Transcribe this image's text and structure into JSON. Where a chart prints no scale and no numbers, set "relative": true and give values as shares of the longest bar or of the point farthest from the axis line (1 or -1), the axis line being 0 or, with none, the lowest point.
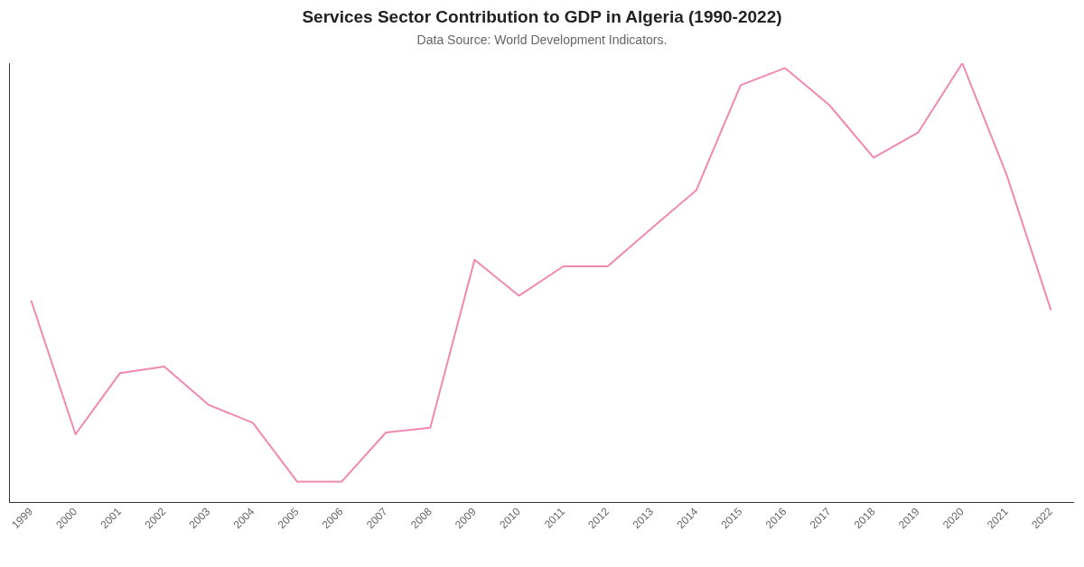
{
  "chart_data": {
    "type": "line",
    "title": "Services Sector Contribution to GDP in Algeria (1990-2022)",
    "subtitle": "Data Source: World Development Indicators.",
    "categories": [
      "1999",
      "2000",
      "2001",
      "2002",
      "2003",
      "2004",
      "2005",
      "2006",
      "2007",
      "2008",
      "2009",
      "2010",
      "2011",
      "2012",
      "2013",
      "2014",
      "2015",
      "2016",
      "2017",
      "2018",
      "2019",
      "2020",
      "2021",
      "2022"
    ],
    "series": [
      {
        "color": "#f088b0",
        "values": [
          0.46,
          0.156,
          0.295,
          0.31,
          0.223,
          0.182,
          0.048,
          0.048,
          0.16,
          0.171,
          0.553,
          0.471,
          0.538,
          0.538,
          0.625,
          0.711,
          0.95,
          0.989,
          0.905,
          0.785,
          0.842,
          1,
          0.746,
          0.438
        ]
      }
    ],
    "relative": true,
    "marker": "none",
    "line_style": "solid"
  }
}
